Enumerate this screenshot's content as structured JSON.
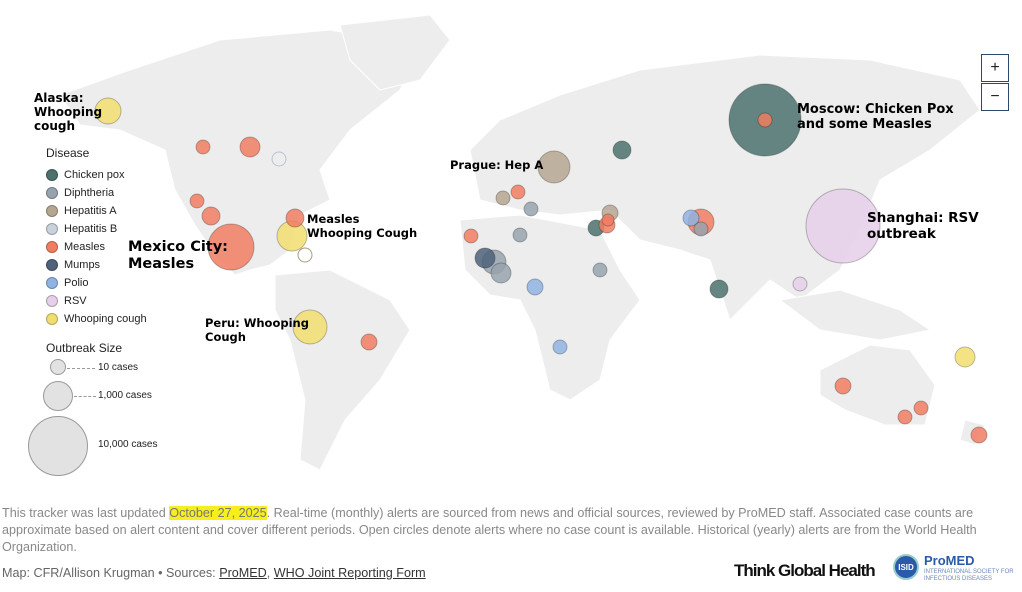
{
  "annotations": {
    "alaska": "Alaska: Whooping cough",
    "mexico": "Mexico City: Measles",
    "east_us": "Measles Whooping Cough",
    "peru": "Peru: Whooping Cough",
    "prague": "Prague: Hep A",
    "moscow": "Moscow: Chicken Pox and some Measles",
    "shanghai": "Shanghai: RSV outbreak"
  },
  "zoom": {
    "in": "+",
    "out": "−"
  },
  "legend": {
    "title": "Disease",
    "items": [
      {
        "label": "Chicken pox",
        "color": "#4a716c"
      },
      {
        "label": "Diphtheria",
        "color": "#97a3ad"
      },
      {
        "label": "Hepatitis A",
        "color": "#b5a690"
      },
      {
        "label": "Hepatitis B",
        "color": "#c9d2dc"
      },
      {
        "label": "Measles",
        "color": "#f07c62"
      },
      {
        "label": "Mumps",
        "color": "#4f6279"
      },
      {
        "label": "Polio",
        "color": "#8fb3e2"
      },
      {
        "label": "RSV",
        "color": "#e6cfe9"
      },
      {
        "label": "Whooping cough",
        "color": "#f1de70"
      }
    ]
  },
  "size_legend": {
    "title": "Outbreak Size",
    "items": [
      "10 cases",
      "1,000 cases",
      "10,000 cases"
    ]
  },
  "footer": {
    "prefix": "This tracker was last updated ",
    "date": "October 27, 2025",
    "rest": ". Real-time (monthly) alerts are sourced from news and official sources, reviewed by ProMED staff. Associated case counts are approximate based on alert content and cover different periods. Open circles denote alerts where no case count is available. Historical (yearly) alerts are from the World Health Organization.",
    "credit": "Map: CFR/Allison Krugman • Sources: ",
    "source1": "ProMED",
    "sep": ", ",
    "source2": "WHO Joint Reporting Form"
  },
  "logos": {
    "tgh": "Think Global Health",
    "isid": "ISID",
    "promed": "ProMED",
    "promed_sub": "INTERNATIONAL SOCIETY FOR INFECTIOUS DISEASES"
  }
}
